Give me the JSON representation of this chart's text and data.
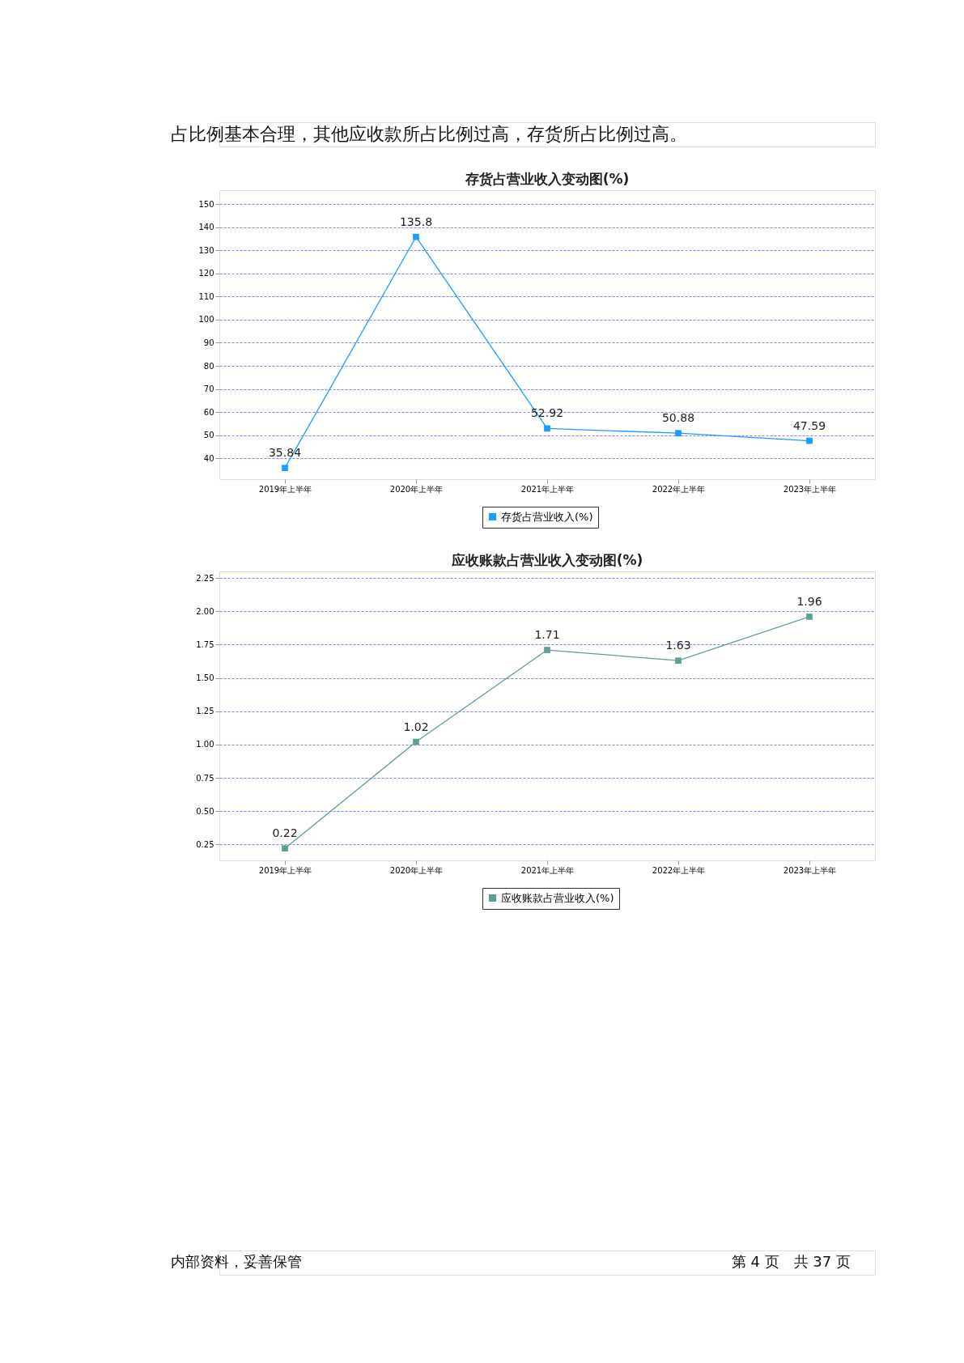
{
  "chart_data": [
    {
      "type": "line",
      "title": "存货占营业收入变动图(%)",
      "annotations": [
        "占比例基本合理，其他应收款所占比例过高，存货所占比例过高。"
      ],
      "categories": [
        "2019年上半年",
        "2020年上半年",
        "2021年上半年",
        "2022年上半年",
        "2023年上半年"
      ],
      "series": [
        {
          "name": "存货占营业收入(%)",
          "color": "#1e9bff",
          "values": [
            35.84,
            135.8,
            52.92,
            50.88,
            47.59
          ]
        }
      ],
      "ylim": [
        31,
        156
      ],
      "yticks": [
        40,
        50,
        60,
        70,
        80,
        90,
        100,
        110,
        120,
        130,
        140,
        150
      ],
      "grid": "y",
      "legend": "bottom",
      "marker": "square",
      "data_labels": true
    },
    {
      "type": "line",
      "title": "应收账款占营业收入变动图(%)",
      "annotations": [
        "内部资料，妥善保管",
        "第 4 页　共 37 页"
      ],
      "categories": [
        "2019年上半年",
        "2020年上半年",
        "2021年上半年",
        "2022年上半年",
        "2023年上半年"
      ],
      "series": [
        {
          "name": "应收账款占营业收入(%)",
          "color": "#5f9e96",
          "values": [
            0.22,
            1.02,
            1.71,
            1.63,
            1.96
          ]
        }
      ],
      "ylim": [
        0.13,
        2.3
      ],
      "yticks": [
        {
          "value": 0.25,
          "label": "0.25"
        },
        {
          "value": 0.5,
          "label": "0.50"
        },
        {
          "value": 0.75,
          "label": "0.75"
        },
        {
          "value": 1,
          "label": "1.00"
        },
        {
          "value": 1.25,
          "label": "1.25"
        },
        {
          "value": 1.5,
          "label": "1.50"
        },
        {
          "value": 1.75,
          "label": "1.75"
        },
        {
          "value": 2,
          "label": "2.00"
        },
        {
          "value": 2.25,
          "label": "2.25"
        }
      ],
      "grid": "y",
      "legend": "bottom",
      "marker": "square",
      "data_labels": true
    }
  ]
}
